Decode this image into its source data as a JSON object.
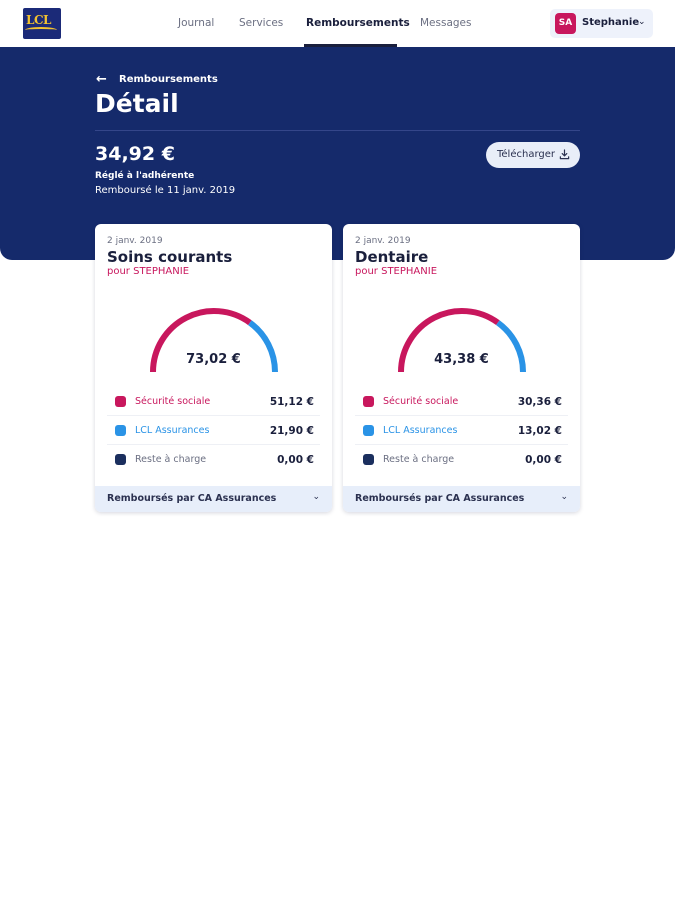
{
  "logo": {
    "text": "LCL"
  },
  "nav": {
    "items": [
      {
        "label": "Journal"
      },
      {
        "label": "Services"
      },
      {
        "label": "Remboursements",
        "active": true
      },
      {
        "label": "Messages"
      }
    ]
  },
  "user": {
    "initials": "SA",
    "name": "Stephanie"
  },
  "header": {
    "back_label": "Remboursements",
    "title": "Détail",
    "amount": "34,92 €",
    "paid_to": "Réglé à l'adhérente",
    "reimbursed_date": "Remboursé le 11 janv. 2019",
    "download_label": "Télécharger"
  },
  "colors": {
    "navy": "#152a6b",
    "securite_sociale": "#c8175d",
    "lcl_assurances": "#2a93e6",
    "reste_a_charge": "#1b2f5e"
  },
  "cards": [
    {
      "date": "2 janv. 2019",
      "title": "Soins courants",
      "for": "pour STEPHANIE",
      "total": "73,02 €",
      "rows": [
        {
          "label": "Sécurité sociale",
          "value": "51,12 €",
          "amount": 51.12
        },
        {
          "label": "LCL Assurances",
          "value": "21,90 €",
          "amount": 21.9
        },
        {
          "label": "Reste à charge",
          "value": "0,00 €",
          "amount": 0.0
        }
      ],
      "footer": "Remboursés par CA Assurances"
    },
    {
      "date": "2 janv. 2019",
      "title": "Dentaire",
      "for": "pour STEPHANIE",
      "total": "43,38 €",
      "rows": [
        {
          "label": "Sécurité sociale",
          "value": "30,36 €",
          "amount": 30.36
        },
        {
          "label": "LCL Assurances",
          "value": "13,02 €",
          "amount": 13.02
        },
        {
          "label": "Reste à charge",
          "value": "0,00 €",
          "amount": 0.0
        }
      ],
      "footer": "Remboursés par CA Assurances"
    }
  ]
}
